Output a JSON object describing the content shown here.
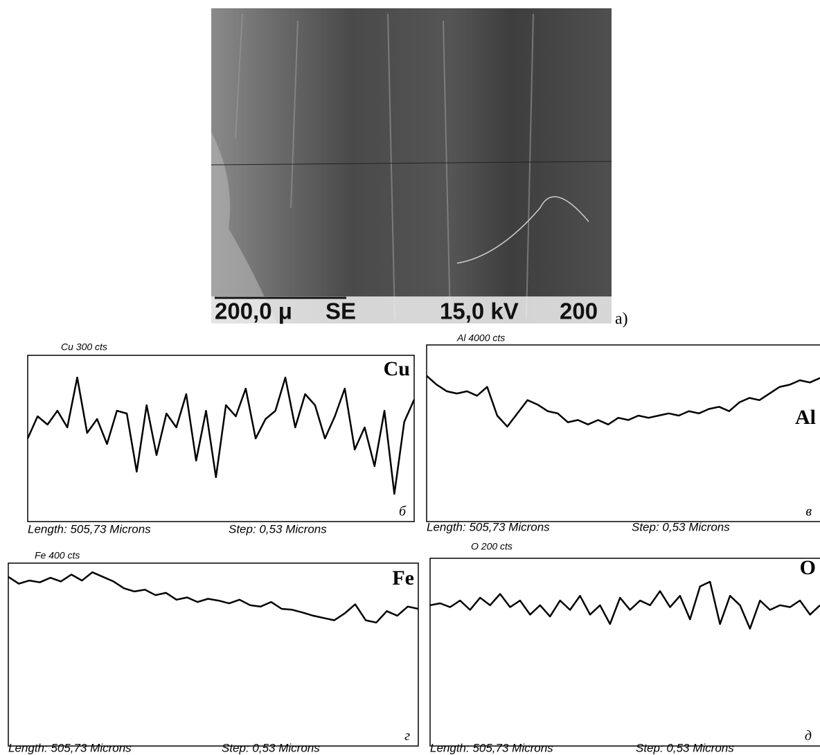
{
  "figure": {
    "image": {
      "scale_bar": "200,0 μ",
      "mode": "SE",
      "voltage": "15,0 kV",
      "magnification": "200",
      "label": "a)"
    },
    "panels": [
      {
        "title": "Cu  300 cts",
        "element": "Cu",
        "letter": "б",
        "length": "Length: 505,73 Microns",
        "step": "Step: 0,53 Microns",
        "ylim": [
          0,
          300
        ],
        "values": [
          150,
          190,
          175,
          200,
          170,
          260,
          160,
          185,
          140,
          200,
          195,
          90,
          210,
          120,
          195,
          170,
          230,
          110,
          200,
          80,
          210,
          190,
          240,
          150,
          185,
          200,
          260,
          170,
          230,
          210,
          150,
          190,
          240,
          130,
          170,
          100,
          200,
          50,
          180,
          220
        ]
      },
      {
        "title": "Al  4000 cts",
        "element": "Al",
        "letter": "в",
        "length": "Length: 505,73 Microns",
        "step": "Step: 0,53 Microns",
        "ylim": [
          0,
          4000
        ],
        "values": [
          3300,
          3100,
          2950,
          2900,
          2950,
          2850,
          3050,
          2400,
          2150,
          2450,
          2750,
          2650,
          2500,
          2450,
          2250,
          2300,
          2200,
          2300,
          2200,
          2350,
          2300,
          2400,
          2350,
          2400,
          2450,
          2400,
          2500,
          2450,
          2550,
          2600,
          2500,
          2700,
          2800,
          2750,
          2900,
          3050,
          3100,
          3200,
          3150,
          3250
        ]
      },
      {
        "title": "Fe  400  cts",
        "element": "Fe",
        "letter": "г",
        "length": "Length: 505,73 Microns",
        "step": "Step: 0,53 Microns",
        "ylim": [
          0,
          400
        ],
        "values": [
          370,
          355,
          362,
          358,
          368,
          360,
          375,
          362,
          380,
          370,
          360,
          345,
          338,
          342,
          330,
          335,
          320,
          325,
          315,
          322,
          318,
          312,
          320,
          308,
          305,
          315,
          300,
          298,
          292,
          285,
          280,
          275,
          290,
          310,
          275,
          270,
          295,
          285,
          305,
          300
        ]
      },
      {
        "title": "O  200 cts",
        "element": "O",
        "letter": "д",
        "length": "Length: 505,73 Microns",
        "step": "Step: 0,53 Microns",
        "ylim": [
          0,
          200
        ],
        "values": [
          150,
          152,
          148,
          155,
          145,
          158,
          150,
          162,
          148,
          155,
          140,
          150,
          138,
          155,
          145,
          160,
          140,
          150,
          130,
          158,
          145,
          155,
          150,
          165,
          148,
          160,
          135,
          170,
          175,
          130,
          160,
          150,
          125,
          155,
          145,
          150,
          148,
          155,
          140,
          150
        ]
      }
    ]
  }
}
